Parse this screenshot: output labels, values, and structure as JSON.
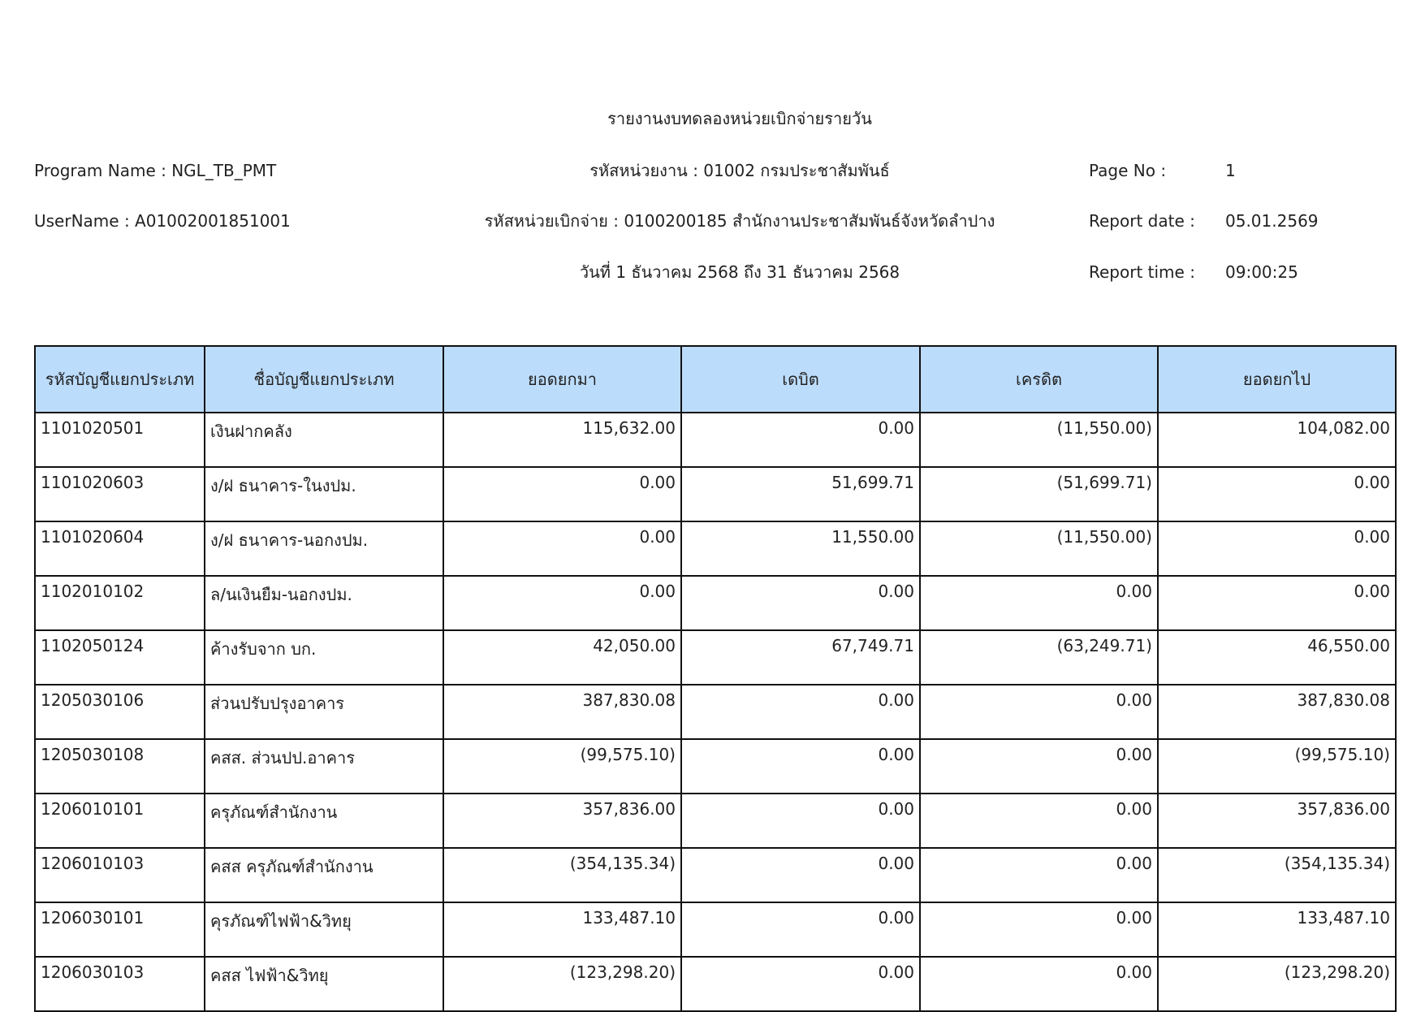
{
  "header": {
    "title": "รายงานงบทดลองหน่วยเบิกจ่ายรายวัน",
    "program_name": "Program Name : NGL_TB_PMT",
    "username": "UserName : A01002001851001",
    "agency": "รหัสหน่วยงาน : 01002 กรมประชาสัมพันธ์",
    "disbursing_unit": "รหัสหน่วยเบิกจ่าย : 0100200185 สำนักงานประชาสัมพันธ์จังหวัดลำปาง",
    "period": "วันที่ 1 ธันวาคม 2568 ถึง 31 ธันวาคม 2568",
    "page_no_label": "Page No :",
    "page_no": "1",
    "report_date_label": "Report date :",
    "report_date": "05.01.2569",
    "report_time_label": "Report time :",
    "report_time": "09:00:25"
  },
  "table": {
    "columns": [
      "รหัสบัญชีแยกประเภท",
      "ชื่อบัญชีแยกประเภท",
      "ยอดยกมา",
      "เดบิต",
      "เครดิต",
      "ยอดยกไป"
    ],
    "rows": [
      [
        "1101020501",
        "เงินฝากคลัง",
        "115,632.00",
        "0.00",
        "(11,550.00)",
        "104,082.00"
      ],
      [
        "1101020603",
        "ง/ฝ ธนาคาร-ในงปม.",
        "0.00",
        "51,699.71",
        "(51,699.71)",
        "0.00"
      ],
      [
        "1101020604",
        "ง/ฝ ธนาคาร-นอกงปม.",
        "0.00",
        "11,550.00",
        "(11,550.00)",
        "0.00"
      ],
      [
        "1102010102",
        "ล/นเงินยืม-นอกงปม.",
        "0.00",
        "0.00",
        "0.00",
        "0.00"
      ],
      [
        "1102050124",
        "ค้างรับจาก บก.",
        "42,050.00",
        "67,749.71",
        "(63,249.71)",
        "46,550.00"
      ],
      [
        "1205030106",
        "ส่วนปรับปรุงอาคาร",
        "387,830.08",
        "0.00",
        "0.00",
        "387,830.08"
      ],
      [
        "1205030108",
        "คสส. ส่วนปป.อาคาร",
        "(99,575.10)",
        "0.00",
        "0.00",
        "(99,575.10)"
      ],
      [
        "1206010101",
        "ครุภัณฑ์สำนักงาน",
        "357,836.00",
        "0.00",
        "0.00",
        "357,836.00"
      ],
      [
        "1206010103",
        "คสส ครุภัณฑ์สำนักงาน",
        "(354,135.34)",
        "0.00",
        "0.00",
        "(354,135.34)"
      ],
      [
        "1206030101",
        "คุรภัณฑ์ไฟฟ้า&วิทยุ",
        "133,487.10",
        "0.00",
        "0.00",
        "133,487.10"
      ],
      [
        "1206030103",
        "คสส ไฟฟ้า&วิทยุ",
        "(123,298.20)",
        "0.00",
        "0.00",
        "(123,298.20)"
      ]
    ]
  },
  "colors": {
    "header_bg": "#bcdcfb",
    "border": "#111111"
  }
}
